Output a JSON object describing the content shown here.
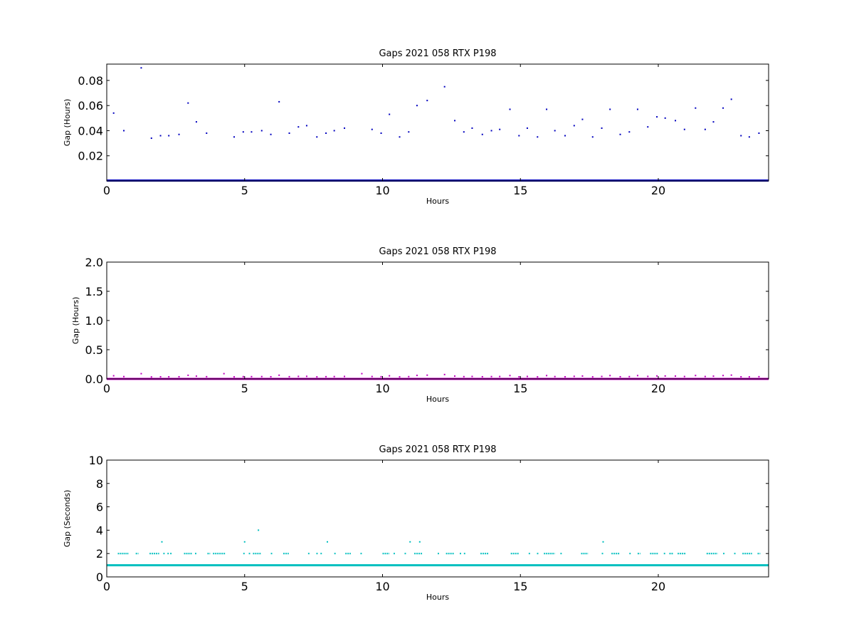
{
  "chart_data": [
    {
      "type": "scatter",
      "title": "Gaps 2021 058 RTX  P198",
      "xlabel": "Hours",
      "ylabel": "Gap (Hours)",
      "xlim": [
        0,
        24
      ],
      "ylim": [
        0,
        0.093
      ],
      "xticks": [
        "0",
        "5",
        "10",
        "15",
        "20"
      ],
      "xtick_values": [
        0,
        5,
        10,
        15,
        20
      ],
      "yticks": [
        "0.02",
        "0.04",
        "0.06",
        "0.08"
      ],
      "ytick_values": [
        0.02,
        0.04,
        0.06,
        0.08
      ],
      "color": "#0000bf",
      "baseline": {
        "y": 0.0003,
        "x_start": 0,
        "x_end": 24
      },
      "points": [
        [
          0.25,
          0.054
        ],
        [
          0.62,
          0.04
        ],
        [
          1.25,
          0.09
        ],
        [
          1.62,
          0.034
        ],
        [
          1.95,
          0.036
        ],
        [
          2.25,
          0.036
        ],
        [
          2.62,
          0.037
        ],
        [
          2.95,
          0.062
        ],
        [
          3.25,
          0.047
        ],
        [
          3.62,
          0.038
        ],
        [
          4.62,
          0.035
        ],
        [
          4.95,
          0.039
        ],
        [
          5.25,
          0.039
        ],
        [
          5.62,
          0.04
        ],
        [
          5.95,
          0.037
        ],
        [
          6.25,
          0.063
        ],
        [
          6.62,
          0.038
        ],
        [
          6.95,
          0.043
        ],
        [
          7.25,
          0.044
        ],
        [
          7.62,
          0.035
        ],
        [
          7.95,
          0.038
        ],
        [
          8.25,
          0.04
        ],
        [
          8.62,
          0.042
        ],
        [
          9.62,
          0.041
        ],
        [
          9.95,
          0.038
        ],
        [
          10.25,
          0.053
        ],
        [
          10.62,
          0.035
        ],
        [
          10.95,
          0.039
        ],
        [
          11.25,
          0.06
        ],
        [
          11.62,
          0.064
        ],
        [
          12.25,
          0.075
        ],
        [
          12.62,
          0.048
        ],
        [
          12.95,
          0.039
        ],
        [
          13.25,
          0.042
        ],
        [
          13.62,
          0.037
        ],
        [
          13.95,
          0.04
        ],
        [
          14.25,
          0.041
        ],
        [
          14.62,
          0.057
        ],
        [
          14.95,
          0.036
        ],
        [
          15.25,
          0.042
        ],
        [
          15.62,
          0.035
        ],
        [
          15.95,
          0.057
        ],
        [
          16.25,
          0.04
        ],
        [
          16.62,
          0.036
        ],
        [
          16.95,
          0.044
        ],
        [
          17.25,
          0.049
        ],
        [
          17.62,
          0.035
        ],
        [
          17.95,
          0.042
        ],
        [
          18.25,
          0.057
        ],
        [
          18.62,
          0.037
        ],
        [
          18.95,
          0.039
        ],
        [
          19.25,
          0.057
        ],
        [
          19.62,
          0.043
        ],
        [
          19.95,
          0.051
        ],
        [
          20.25,
          0.05
        ],
        [
          20.62,
          0.048
        ],
        [
          20.95,
          0.041
        ],
        [
          21.35,
          0.058
        ],
        [
          21.7,
          0.041
        ],
        [
          22.0,
          0.047
        ],
        [
          22.35,
          0.058
        ],
        [
          22.65,
          0.065
        ],
        [
          23.0,
          0.036
        ],
        [
          23.3,
          0.035
        ],
        [
          23.65,
          0.038
        ]
      ]
    },
    {
      "type": "scatter",
      "title": "Gaps 2021 058 RTX  P198",
      "xlabel": "Hours",
      "ylabel": "Gap (Hours)",
      "xlim": [
        0,
        24
      ],
      "ylim": [
        0,
        2.0
      ],
      "xticks": [
        "0",
        "5",
        "10",
        "15",
        "20"
      ],
      "xtick_values": [
        0,
        5,
        10,
        15,
        20
      ],
      "yticks": [
        "0.0",
        "0.5",
        "1.0",
        "1.5",
        "2.0"
      ],
      "ytick_values": [
        0,
        0.5,
        1.0,
        1.5,
        2.0
      ],
      "color": "#bf00bf",
      "baseline": {
        "y": 0.0003,
        "x_start": 0,
        "x_end": 24
      },
      "points": [
        [
          0.25,
          0.054
        ],
        [
          0.62,
          0.04
        ],
        [
          1.25,
          0.09
        ],
        [
          1.62,
          0.034
        ],
        [
          1.95,
          0.036
        ],
        [
          2.25,
          0.036
        ],
        [
          2.62,
          0.037
        ],
        [
          2.95,
          0.062
        ],
        [
          3.25,
          0.047
        ],
        [
          3.62,
          0.038
        ],
        [
          4.25,
          0.09
        ],
        [
          4.62,
          0.035
        ],
        [
          4.95,
          0.039
        ],
        [
          5.25,
          0.039
        ],
        [
          5.62,
          0.04
        ],
        [
          5.95,
          0.037
        ],
        [
          6.25,
          0.063
        ],
        [
          6.62,
          0.038
        ],
        [
          6.95,
          0.043
        ],
        [
          7.25,
          0.044
        ],
        [
          7.62,
          0.035
        ],
        [
          7.95,
          0.038
        ],
        [
          8.25,
          0.04
        ],
        [
          8.62,
          0.042
        ],
        [
          9.25,
          0.09
        ],
        [
          9.62,
          0.041
        ],
        [
          9.95,
          0.038
        ],
        [
          10.25,
          0.053
        ],
        [
          10.62,
          0.035
        ],
        [
          10.95,
          0.039
        ],
        [
          11.25,
          0.06
        ],
        [
          11.62,
          0.064
        ],
        [
          12.25,
          0.075
        ],
        [
          12.62,
          0.048
        ],
        [
          12.95,
          0.039
        ],
        [
          13.25,
          0.042
        ],
        [
          13.62,
          0.037
        ],
        [
          13.95,
          0.04
        ],
        [
          14.25,
          0.041
        ],
        [
          14.62,
          0.057
        ],
        [
          14.95,
          0.036
        ],
        [
          15.25,
          0.042
        ],
        [
          15.62,
          0.035
        ],
        [
          15.95,
          0.057
        ],
        [
          16.25,
          0.04
        ],
        [
          16.62,
          0.036
        ],
        [
          16.95,
          0.044
        ],
        [
          17.25,
          0.049
        ],
        [
          17.62,
          0.035
        ],
        [
          17.95,
          0.042
        ],
        [
          18.25,
          0.057
        ],
        [
          18.62,
          0.037
        ],
        [
          18.95,
          0.039
        ],
        [
          19.25,
          0.057
        ],
        [
          19.62,
          0.043
        ],
        [
          19.95,
          0.051
        ],
        [
          20.25,
          0.05
        ],
        [
          20.62,
          0.048
        ],
        [
          20.95,
          0.041
        ],
        [
          21.35,
          0.058
        ],
        [
          21.7,
          0.041
        ],
        [
          22.0,
          0.047
        ],
        [
          22.35,
          0.058
        ],
        [
          22.65,
          0.065
        ],
        [
          23.0,
          0.036
        ],
        [
          23.3,
          0.035
        ],
        [
          23.65,
          0.038
        ]
      ]
    },
    {
      "type": "scatter",
      "title": "Gaps 2021 058 RTX  P198",
      "xlabel": "Hours",
      "ylabel": "Gap (Seconds)",
      "xlim": [
        0,
        24
      ],
      "ylim": [
        0,
        10
      ],
      "xticks": [
        "0",
        "5",
        "10",
        "15",
        "20"
      ],
      "xtick_values": [
        0,
        5,
        10,
        15,
        20
      ],
      "yticks": [
        "0",
        "2",
        "4",
        "6",
        "8",
        "10"
      ],
      "ytick_values": [
        0,
        2,
        4,
        6,
        8,
        10
      ],
      "color": "#00bfbf",
      "baseline": {
        "y": 1,
        "x_start": 0,
        "x_end": 24
      },
      "segments_y2": [
        [
          0.4,
          0.8
        ],
        [
          1.05,
          1.15
        ],
        [
          1.55,
          1.9
        ],
        [
          2.05,
          2.1
        ],
        [
          2.2,
          2.25
        ],
        [
          2.3,
          2.35
        ],
        [
          2.8,
          3.1
        ],
        [
          3.2,
          3.25
        ],
        [
          3.65,
          3.75
        ],
        [
          3.85,
          4.3
        ],
        [
          4.95,
          5.0
        ],
        [
          5.15,
          5.2
        ],
        [
          5.3,
          5.6
        ],
        [
          5.95,
          6.0
        ],
        [
          6.4,
          6.6
        ],
        [
          7.3,
          7.35
        ],
        [
          7.6,
          7.65
        ],
        [
          7.75,
          7.8
        ],
        [
          8.25,
          8.3
        ],
        [
          8.65,
          8.85
        ],
        [
          9.2,
          9.25
        ],
        [
          10.0,
          10.25
        ],
        [
          10.4,
          10.45
        ],
        [
          10.8,
          10.85
        ],
        [
          11.15,
          11.45
        ],
        [
          12.0,
          12.05
        ],
        [
          12.3,
          12.6
        ],
        [
          12.8,
          12.85
        ],
        [
          12.95,
          13.0
        ],
        [
          13.55,
          13.85
        ],
        [
          14.65,
          14.95
        ],
        [
          15.3,
          15.35
        ],
        [
          15.6,
          15.65
        ],
        [
          15.85,
          16.25
        ],
        [
          16.45,
          16.5
        ],
        [
          17.2,
          17.45
        ],
        [
          17.95,
          18.0
        ],
        [
          18.3,
          18.6
        ],
        [
          18.95,
          19.0
        ],
        [
          19.25,
          19.35
        ],
        [
          19.7,
          20.0
        ],
        [
          20.2,
          20.25
        ],
        [
          20.4,
          20.55
        ],
        [
          20.7,
          21.0
        ],
        [
          21.75,
          22.15
        ],
        [
          22.35,
          22.4
        ],
        [
          22.75,
          22.8
        ],
        [
          23.05,
          23.4
        ],
        [
          23.6,
          23.7
        ]
      ],
      "points": [
        [
          2.0,
          3
        ],
        [
          5.0,
          3
        ],
        [
          5.5,
          4
        ],
        [
          8.0,
          3
        ],
        [
          11.0,
          3
        ],
        [
          11.35,
          3
        ],
        [
          18.0,
          3
        ]
      ]
    }
  ]
}
